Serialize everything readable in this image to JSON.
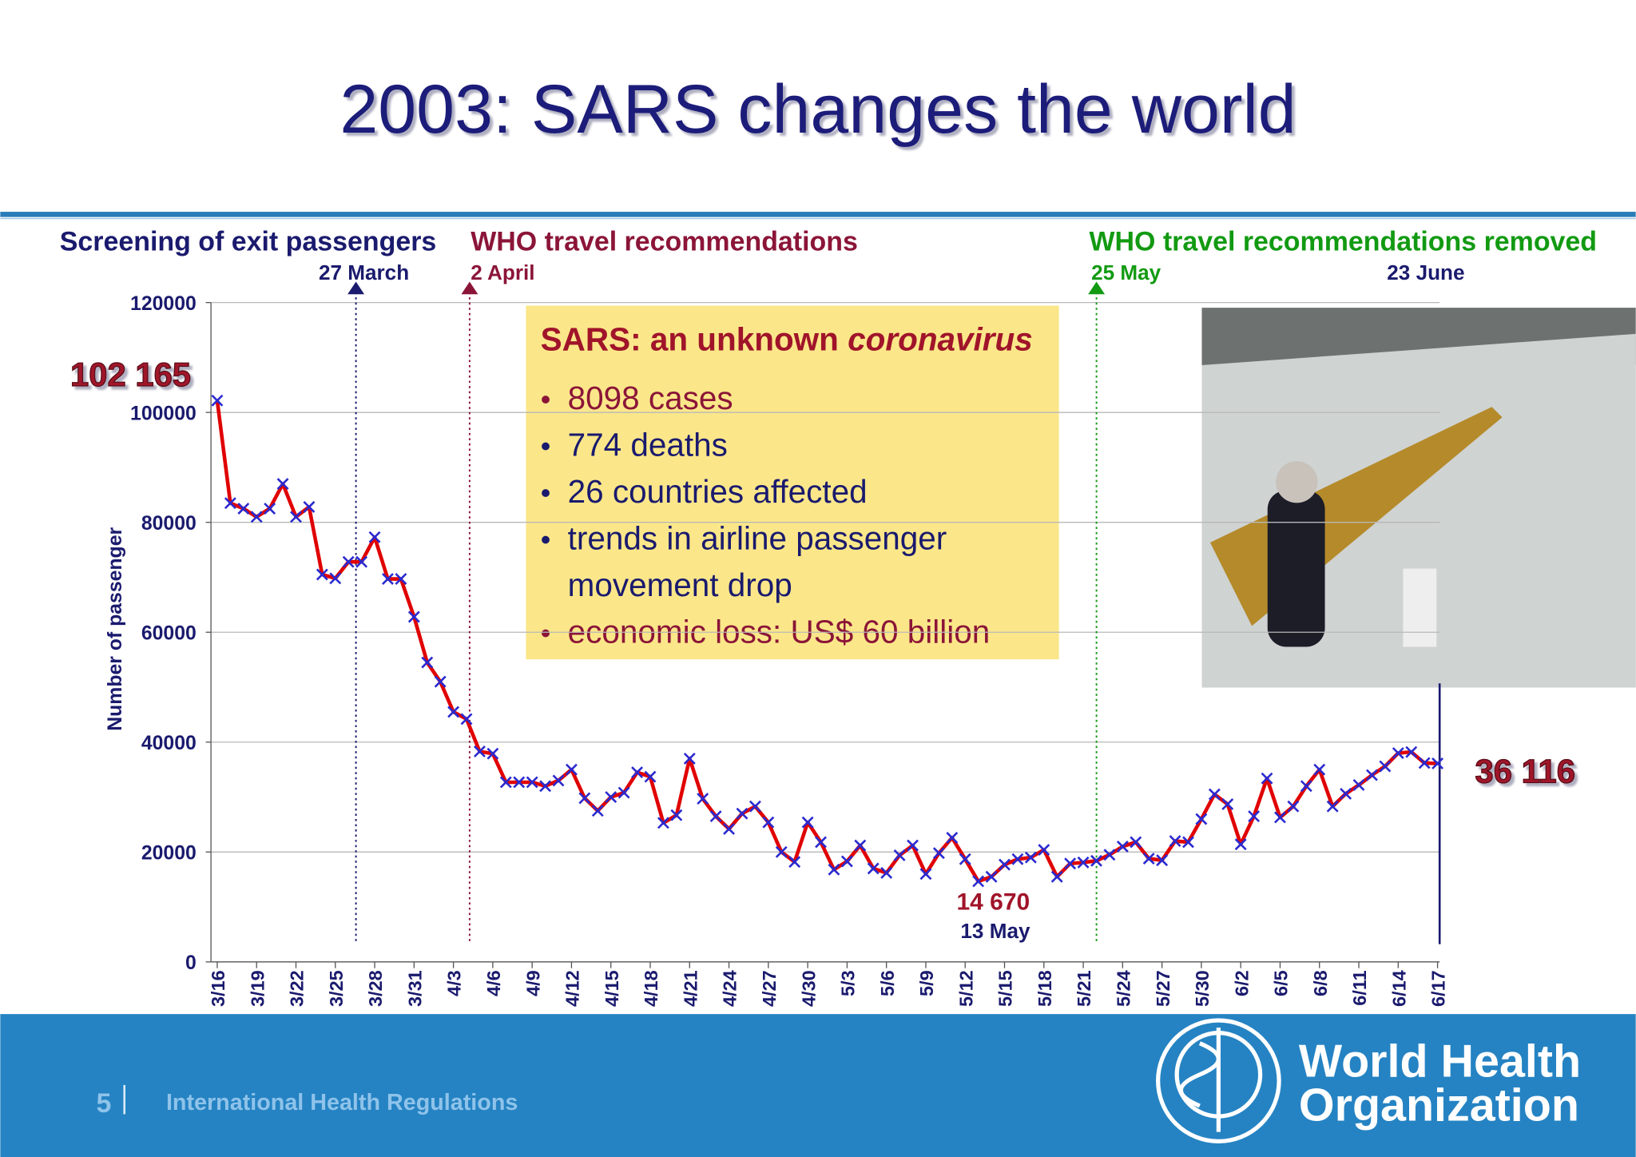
{
  "slide": {
    "title": "2003: SARS changes the world",
    "page_number": "5",
    "footer": "International Health Regulations",
    "logo": [
      "World Health",
      "Organization"
    ]
  },
  "info_box": {
    "title": "SARS: an unknown ",
    "title_italic": "coronavirus",
    "bullets": [
      {
        "text": "8098 cases",
        "color": "#8b1538"
      },
      {
        "text": "774 deaths",
        "color": "#1a1a6e"
      },
      {
        "text": "26 countries affected",
        "color": "#1a1a6e"
      },
      {
        "text": "trends in airline passenger",
        "color": "#1a1a6e"
      },
      {
        "text": "movement drop",
        "color": "#1a1a6e",
        "continued": true
      },
      {
        "text": "economic loss: US$ 60 billion",
        "color": "#8b1538"
      }
    ]
  },
  "chart_data": {
    "type": "line",
    "ylabel": "Number of passenger",
    "ylim": [
      0,
      120000
    ],
    "yticks": [
      0,
      20000,
      40000,
      60000,
      80000,
      100000,
      120000
    ],
    "grid": true,
    "categories": [
      "3/16",
      null,
      null,
      "3/19",
      null,
      null,
      "3/22",
      null,
      null,
      "3/25",
      null,
      null,
      "3/28",
      null,
      null,
      "3/31",
      null,
      null,
      "4/3",
      null,
      null,
      "4/6",
      null,
      null,
      "4/9",
      null,
      null,
      "4/12",
      null,
      null,
      "4/15",
      null,
      null,
      "4/18",
      null,
      null,
      "4/21",
      null,
      null,
      "4/24",
      null,
      null,
      "4/27",
      null,
      null,
      "4/30",
      null,
      null,
      "5/3",
      null,
      null,
      "5/6",
      null,
      null,
      "5/9",
      null,
      null,
      "5/12",
      null,
      null,
      "5/15",
      null,
      null,
      "5/18",
      null,
      null,
      "5/21",
      null,
      null,
      "5/24",
      null,
      null,
      "5/27",
      null,
      null,
      "5/30",
      null,
      null,
      "6/2",
      null,
      null,
      "6/5",
      null,
      null,
      "6/8",
      null,
      null,
      "6/11",
      null,
      null,
      "6/14",
      null,
      null,
      "6/17"
    ],
    "series": [
      {
        "name": "exit passengers",
        "color": "#e00000",
        "marker_color": "#2a2ad0",
        "values": [
          102165,
          83500,
          82500,
          81000,
          82500,
          87000,
          81000,
          82800,
          70500,
          69800,
          72800,
          72800,
          77300,
          69700,
          69700,
          62800,
          54500,
          51000,
          45500,
          44200,
          38300,
          37900,
          32700,
          32700,
          32700,
          32000,
          33000,
          35000,
          29800,
          27500,
          30000,
          30800,
          34500,
          33700,
          25300,
          26700,
          37000,
          29700,
          26500,
          24200,
          27000,
          28300,
          25400,
          20000,
          18200,
          25400,
          21800,
          16800,
          18300,
          21200,
          17000,
          16200,
          19400,
          21200,
          16000,
          19800,
          22600,
          18700,
          14670,
          15500,
          17700,
          18700,
          19000,
          20400,
          15500,
          17900,
          18100,
          18400,
          19500,
          21000,
          21800,
          18800,
          18500,
          22000,
          21800,
          26000,
          30500,
          28700,
          21400,
          26500,
          33400,
          26300,
          28300,
          32000,
          35000,
          28300,
          30600,
          32200,
          34000,
          35600,
          38000,
          38200,
          36200,
          36116
        ],
        "value_labels": [
          "102 165",
          null,
          null,
          null,
          null,
          null,
          null,
          null,
          null,
          null,
          null,
          null,
          null,
          null,
          null,
          null,
          null,
          null,
          null,
          null,
          null,
          null,
          null,
          null,
          null,
          null,
          null,
          null,
          null,
          null,
          null,
          null,
          null,
          null,
          null,
          null,
          null,
          null,
          null,
          null,
          null,
          null,
          null,
          null,
          null,
          null,
          null,
          null,
          null,
          null,
          null,
          null,
          null,
          null,
          null,
          null,
          null,
          null,
          "14 670",
          null,
          null,
          null,
          null,
          null,
          null,
          null,
          null,
          null,
          null,
          null,
          null,
          null,
          null,
          null,
          null,
          null,
          null,
          null,
          null,
          null,
          null,
          null,
          null,
          null,
          null,
          null,
          null,
          null,
          null,
          null,
          null,
          null,
          null,
          "36 116"
        ]
      }
    ],
    "annotations": [
      "13 May"
    ],
    "events": [
      {
        "title": "Screening of exit passengers",
        "date": "27 March",
        "color": "#1a1a6e"
      },
      {
        "title": "WHO travel recommendations",
        "date": "2 April",
        "color": "#8b1538"
      },
      {
        "title": "WHO travel recommendations removed",
        "date": "25 May",
        "color": "#129a12"
      },
      {
        "date": "23 June",
        "color": "#1a1a6e"
      }
    ]
  }
}
